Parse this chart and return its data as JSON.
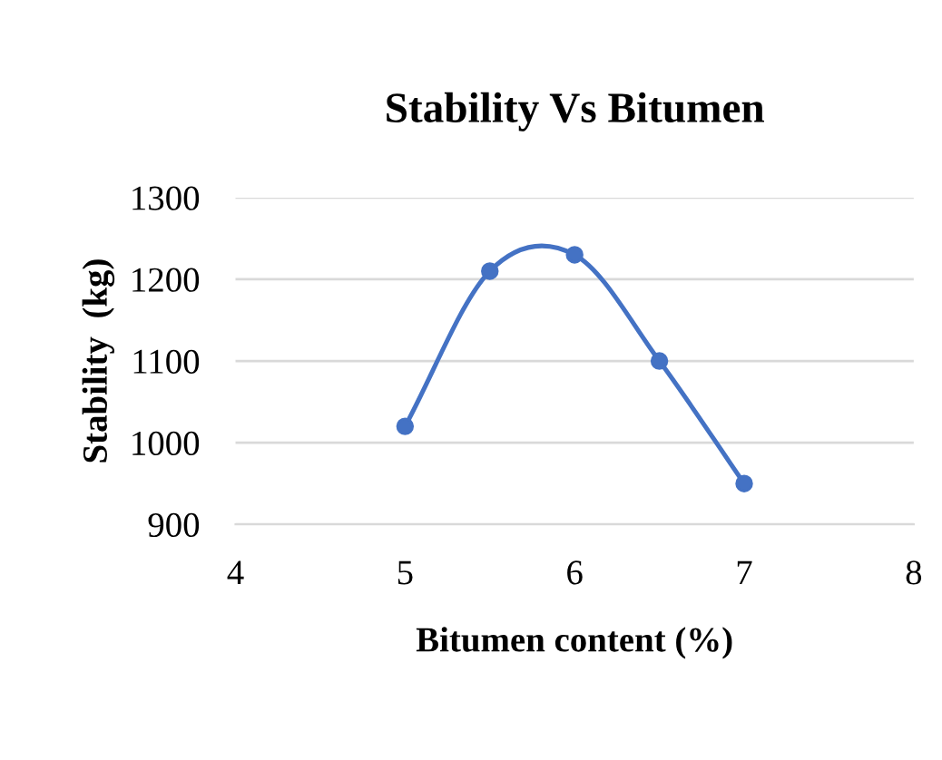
{
  "chart_data": {
    "type": "line",
    "title": "Stability Vs Bitumen",
    "xlabel": "Bitumen content (%)",
    "ylabel": "Stability  (kg)",
    "x": [
      5,
      5.5,
      6,
      6.5,
      7
    ],
    "series": [
      {
        "color": "#4472c4",
        "values": [
          1020,
          1210,
          1230,
          1100,
          950
        ]
      }
    ],
    "xlim": [
      4,
      8
    ],
    "xticks": [
      4,
      5,
      6,
      7,
      8
    ],
    "ylim": [
      900,
      1300
    ],
    "yticks": [
      900,
      1000,
      1100,
      1200,
      1300
    ],
    "grid": "y",
    "marker": "circle",
    "line_style": "solid"
  }
}
